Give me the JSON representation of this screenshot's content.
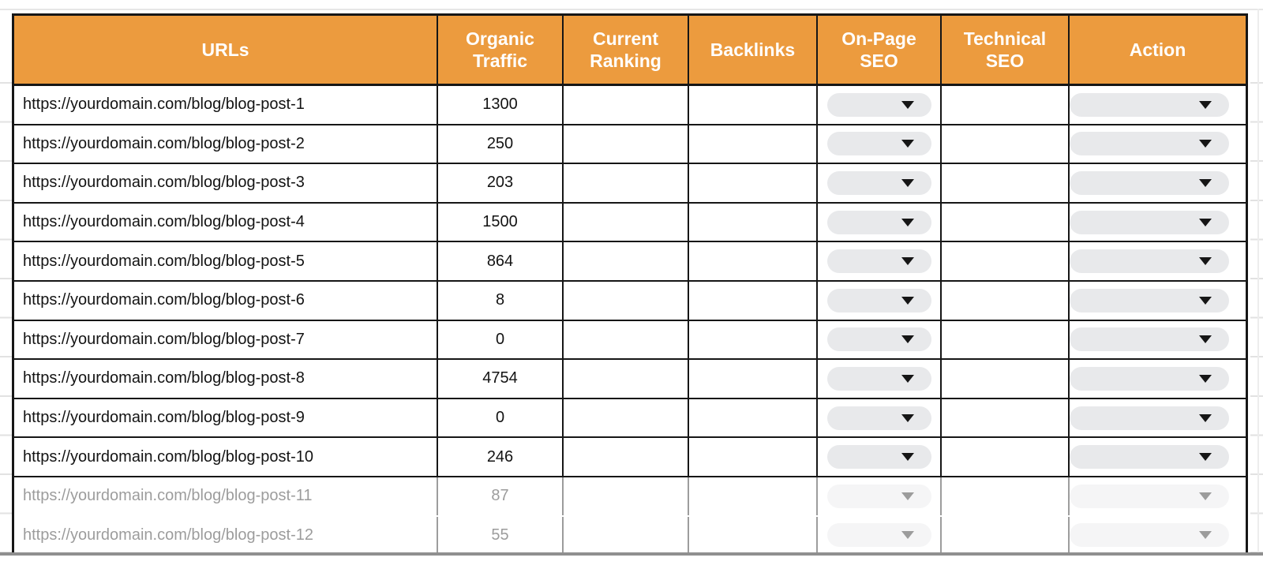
{
  "colors": {
    "header_bg": "#EC9B3E",
    "header_text": "#FFFFFF",
    "border": "#161616",
    "pill_bg": "#E8E9EB",
    "faded_row_text": "#9C9C9C"
  },
  "table": {
    "columns": [
      {
        "label": "URLs"
      },
      {
        "label": "Organic Traffic"
      },
      {
        "label": "Current Ranking"
      },
      {
        "label": "Backlinks"
      },
      {
        "label": "On-Page SEO"
      },
      {
        "label": "Technical SEO"
      },
      {
        "label": "Action"
      }
    ],
    "rows": [
      {
        "url": "https://yourdomain.com/blog/blog-post-1",
        "organic_traffic": "1300",
        "current_ranking": "",
        "backlinks": "",
        "on_page_seo": "",
        "technical_seo": "",
        "action": "",
        "faded": false
      },
      {
        "url": "https://yourdomain.com/blog/blog-post-2",
        "organic_traffic": "250",
        "current_ranking": "",
        "backlinks": "",
        "on_page_seo": "",
        "technical_seo": "",
        "action": "",
        "faded": false
      },
      {
        "url": "https://yourdomain.com/blog/blog-post-3",
        "organic_traffic": "203",
        "current_ranking": "",
        "backlinks": "",
        "on_page_seo": "",
        "technical_seo": "",
        "action": "",
        "faded": false
      },
      {
        "url": "https://yourdomain.com/blog/blog-post-4",
        "organic_traffic": "1500",
        "current_ranking": "",
        "backlinks": "",
        "on_page_seo": "",
        "technical_seo": "",
        "action": "",
        "faded": false
      },
      {
        "url": "https://yourdomain.com/blog/blog-post-5",
        "organic_traffic": "864",
        "current_ranking": "",
        "backlinks": "",
        "on_page_seo": "",
        "technical_seo": "",
        "action": "",
        "faded": false
      },
      {
        "url": "https://yourdomain.com/blog/blog-post-6",
        "organic_traffic": "8",
        "current_ranking": "",
        "backlinks": "",
        "on_page_seo": "",
        "technical_seo": "",
        "action": "",
        "faded": false
      },
      {
        "url": "https://yourdomain.com/blog/blog-post-7",
        "organic_traffic": "0",
        "current_ranking": "",
        "backlinks": "",
        "on_page_seo": "",
        "technical_seo": "",
        "action": "",
        "faded": false
      },
      {
        "url": "https://yourdomain.com/blog/blog-post-8",
        "organic_traffic": "4754",
        "current_ranking": "",
        "backlinks": "",
        "on_page_seo": "",
        "technical_seo": "",
        "action": "",
        "faded": false
      },
      {
        "url": "https://yourdomain.com/blog/blog-post-9",
        "organic_traffic": "0",
        "current_ranking": "",
        "backlinks": "",
        "on_page_seo": "",
        "technical_seo": "",
        "action": "",
        "faded": false
      },
      {
        "url": "https://yourdomain.com/blog/blog-post-10",
        "organic_traffic": "246",
        "current_ranking": "",
        "backlinks": "",
        "on_page_seo": "",
        "technical_seo": "",
        "action": "",
        "faded": false
      },
      {
        "url": "https://yourdomain.com/blog/blog-post-11",
        "organic_traffic": "87",
        "current_ranking": "",
        "backlinks": "",
        "on_page_seo": "",
        "technical_seo": "",
        "action": "",
        "faded": true
      },
      {
        "url": "https://yourdomain.com/blog/blog-post-12",
        "organic_traffic": "55",
        "current_ranking": "",
        "backlinks": "",
        "on_page_seo": "",
        "technical_seo": "",
        "action": "",
        "faded": true
      }
    ]
  }
}
